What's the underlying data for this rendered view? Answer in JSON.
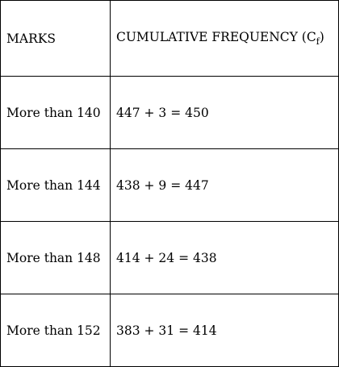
{
  "table": {
    "headers": {
      "marks": "MARKS",
      "cf_prefix": "CUMULATIVE FREQUENCY (C",
      "cf_sub": "f",
      "cf_suffix": ")"
    },
    "rows": [
      {
        "marks": "More than 140",
        "cf": "447 + 3 = 450"
      },
      {
        "marks": "More than 144",
        "cf": "438 + 9 = 447"
      },
      {
        "marks": "More than 148",
        "cf": "414 + 24 = 438"
      },
      {
        "marks": "More than 152",
        "cf": "383 + 31 = 414"
      }
    ]
  }
}
